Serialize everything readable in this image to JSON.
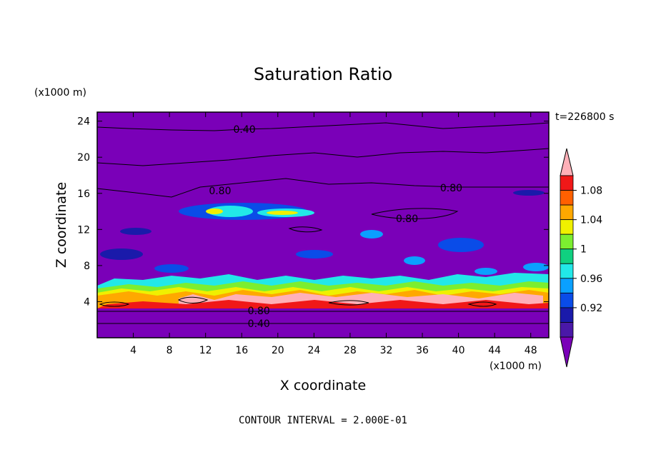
{
  "chart_data": {
    "type": "heatmap",
    "title": "Saturation Ratio",
    "xlabel": "X coordinate",
    "ylabel": "Z coordinate",
    "x_unit": "(x1000 m)",
    "y_unit": "(x1000 m)",
    "time_label": "t=226800 s",
    "footer": "CONTOUR INTERVAL = 2.000E-01",
    "xlim": [
      0,
      50
    ],
    "ylim": [
      0,
      25
    ],
    "x_ticks": [
      "4",
      "8",
      "12",
      "16",
      "20",
      "24",
      "28",
      "32",
      "36",
      "40",
      "44",
      "48"
    ],
    "y_ticks": [
      "4",
      "8",
      "12",
      "16",
      "20",
      "24"
    ],
    "colorbar_labels": [
      "0.92",
      "0.96",
      "1",
      "1.04",
      "1.08"
    ],
    "colorbar_levels": [
      0.9,
      0.92,
      0.94,
      0.96,
      0.98,
      1.0,
      1.02,
      1.04,
      1.06,
      1.08,
      1.1
    ],
    "colorbar_colors": [
      "#7a00b8",
      "#4a18a8",
      "#1a1aaa",
      "#0a4ce8",
      "#0aa0ff",
      "#22e8e8",
      "#10d080",
      "#7cee30",
      "#f0f000",
      "#ffa800",
      "#ff6000",
      "#f01818",
      "#ffb0b8"
    ],
    "contour_interval": 0.2,
    "contour_labels": [
      {
        "text": "0.40",
        "x": 16.3,
        "z": 23.1
      },
      {
        "text": "0.80",
        "x": 13.6,
        "z": 16.3
      },
      {
        "text": "0.80",
        "x": 39.2,
        "z": 16.6
      },
      {
        "text": "0.80",
        "x": 34.3,
        "z": 13.2
      },
      {
        "text": "0.80",
        "x": 17.9,
        "z": 3.0
      },
      {
        "text": "0.40",
        "x": 17.9,
        "z": 1.6
      }
    ],
    "regions": [
      {
        "level": 0.88,
        "desc": "background",
        "z": [
          0,
          25
        ]
      },
      {
        "level": 0.93,
        "z_center": 14.0,
        "blobs": 9
      },
      {
        "level": 0.96,
        "z_center": 13.5,
        "blobs": 6
      },
      {
        "level": 1.0,
        "z_center": 14.3,
        "blobs": 2
      },
      {
        "level": 1.04,
        "z_center": 14.2,
        "blobs": 2
      },
      {
        "level": 0.96,
        "z": [
          6.2,
          7.0
        ]
      },
      {
        "level": 1.0,
        "z": [
          5.4,
          6.2
        ]
      },
      {
        "level": 1.04,
        "z": [
          3.6,
          5.6
        ]
      },
      {
        "level": 1.1,
        "z": [
          3.4,
          4.6
        ]
      }
    ]
  }
}
